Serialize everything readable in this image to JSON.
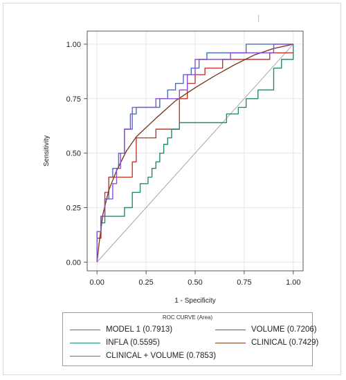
{
  "chart_data": {
    "type": "line",
    "title": "",
    "xlabel": "1 - Specificity",
    "ylabel": "Sensitivity",
    "xlim": [
      -0.05,
      1.05
    ],
    "ylim": [
      -0.04,
      1.06
    ],
    "xticks": [
      "0.00",
      "0.25",
      "0.50",
      "0.75",
      "1.00"
    ],
    "yticks": [
      "0.00",
      "0.25",
      "0.50",
      "0.75",
      "1.00"
    ],
    "grid": true,
    "legend": {
      "title": "ROC CURVE (Area)",
      "placement": "bottom"
    },
    "reference_line": {
      "x": [
        0,
        1
      ],
      "y": [
        0,
        1
      ],
      "color": "#a6a6a6"
    },
    "series": [
      {
        "name": "MODEL 1 (0.7913)",
        "color": "#4a6fb5",
        "x": [
          0,
          0,
          0.02,
          0.02,
          0.04,
          0.04,
          0.06,
          0.06,
          0.08,
          0.08,
          0.11,
          0.11,
          0.14,
          0.14,
          0.17,
          0.17,
          0.2,
          0.2,
          0.24,
          0.24,
          0.28,
          0.28,
          0.32,
          0.32,
          0.36,
          0.36,
          0.4,
          0.4,
          0.44,
          0.44,
          0.48,
          0.48,
          0.52,
          0.52,
          0.56,
          0.56,
          0.6,
          0.6,
          0.64,
          0.64,
          0.68,
          0.68,
          0.72,
          0.72,
          0.76,
          0.76,
          0.88,
          0.88,
          1.0
        ],
        "y": [
          0,
          0.11,
          0.11,
          0.21,
          0.21,
          0.29,
          0.29,
          0.39,
          0.39,
          0.43,
          0.43,
          0.5,
          0.5,
          0.61,
          0.61,
          0.68,
          0.68,
          0.71,
          0.71,
          0.71,
          0.71,
          0.71,
          0.71,
          0.75,
          0.75,
          0.79,
          0.79,
          0.82,
          0.82,
          0.86,
          0.86,
          0.89,
          0.89,
          0.93,
          0.93,
          0.96,
          0.96,
          0.96,
          0.96,
          0.96,
          0.96,
          0.96,
          0.96,
          0.96,
          0.96,
          1.0,
          1.0,
          1.0,
          1.0
        ]
      },
      {
        "name": "VOLUME (0.7206)",
        "color": "#c0392b",
        "x": [
          0,
          0,
          0.02,
          0.02,
          0.04,
          0.04,
          0.06,
          0.06,
          0.1,
          0.1,
          0.14,
          0.14,
          0.18,
          0.18,
          0.2,
          0.2,
          0.26,
          0.26,
          0.3,
          0.3,
          0.38,
          0.38,
          0.42,
          0.42,
          0.46,
          0.46,
          0.5,
          0.5,
          0.55,
          0.55,
          0.6,
          0.6,
          0.64,
          0.64,
          0.72,
          0.72,
          0.88,
          0.88,
          0.94,
          0.94,
          1.0
        ],
        "y": [
          0,
          0.11,
          0.11,
          0.21,
          0.21,
          0.32,
          0.32,
          0.39,
          0.39,
          0.39,
          0.39,
          0.39,
          0.39,
          0.46,
          0.46,
          0.57,
          0.57,
          0.57,
          0.57,
          0.61,
          0.61,
          0.61,
          0.61,
          0.75,
          0.75,
          0.82,
          0.82,
          0.86,
          0.86,
          0.89,
          0.89,
          0.89,
          0.89,
          0.93,
          0.93,
          0.93,
          0.93,
          0.96,
          0.96,
          0.96,
          0.96
        ]
      },
      {
        "name": "INFLA (0.5595)",
        "color": "#1f8a70",
        "x": [
          0,
          0,
          0.02,
          0.02,
          0.04,
          0.04,
          0.06,
          0.06,
          0.14,
          0.14,
          0.18,
          0.18,
          0.22,
          0.22,
          0.26,
          0.26,
          0.28,
          0.28,
          0.3,
          0.3,
          0.32,
          0.32,
          0.34,
          0.34,
          0.36,
          0.36,
          0.38,
          0.38,
          0.4,
          0.4,
          0.42,
          0.42,
          0.44,
          0.44,
          0.48,
          0.48,
          0.66,
          0.66,
          0.72,
          0.72,
          0.76,
          0.76,
          0.82,
          0.82,
          0.84,
          0.84,
          0.9,
          0.9,
          0.94,
          0.94,
          1.0,
          1.0
        ],
        "y": [
          0,
          0.14,
          0.14,
          0.18,
          0.18,
          0.21,
          0.21,
          0.21,
          0.21,
          0.25,
          0.25,
          0.32,
          0.32,
          0.36,
          0.36,
          0.39,
          0.39,
          0.43,
          0.43,
          0.46,
          0.46,
          0.5,
          0.5,
          0.54,
          0.54,
          0.57,
          0.57,
          0.61,
          0.61,
          0.61,
          0.61,
          0.64,
          0.64,
          0.64,
          0.64,
          0.64,
          0.64,
          0.68,
          0.68,
          0.71,
          0.71,
          0.75,
          0.75,
          0.79,
          0.79,
          0.79,
          0.79,
          0.89,
          0.89,
          0.93,
          0.93,
          1.0
        ]
      },
      {
        "name": "CLINICAL (0.7429)",
        "color": "#7b3b1e",
        "x": [
          0,
          0.01,
          0.03,
          0.06,
          0.1,
          0.15,
          0.2,
          0.3,
          0.4,
          0.5,
          0.6,
          0.7,
          0.8,
          0.9,
          1.0
        ],
        "y": [
          0,
          0.08,
          0.22,
          0.33,
          0.42,
          0.51,
          0.575,
          0.66,
          0.74,
          0.8,
          0.855,
          0.905,
          0.95,
          0.98,
          1.0
        ]
      },
      {
        "name": "CLINICAL + VOLUME (0.7853)",
        "color": "#8a4fd8",
        "x": [
          0,
          0,
          0.02,
          0.02,
          0.04,
          0.04,
          0.08,
          0.08,
          0.1,
          0.1,
          0.12,
          0.12,
          0.14,
          0.14,
          0.18,
          0.18,
          0.22,
          0.22,
          0.3,
          0.3,
          0.38,
          0.38,
          0.42,
          0.42,
          0.46,
          0.46,
          0.5,
          0.5,
          0.56,
          0.56,
          0.62,
          0.62,
          0.68,
          0.68,
          0.76,
          0.76,
          0.9,
          0.9,
          1.0
        ],
        "y": [
          0,
          0.14,
          0.14,
          0.21,
          0.21,
          0.29,
          0.29,
          0.36,
          0.36,
          0.43,
          0.43,
          0.5,
          0.5,
          0.61,
          0.61,
          0.71,
          0.71,
          0.71,
          0.71,
          0.75,
          0.75,
          0.75,
          0.75,
          0.79,
          0.79,
          0.86,
          0.86,
          0.93,
          0.93,
          0.93,
          0.93,
          0.93,
          0.93,
          0.96,
          0.96,
          0.96,
          0.96,
          1.0,
          1.0
        ]
      }
    ]
  },
  "legend_layout": [
    {
      "index": 0,
      "col": 0,
      "row": 0
    },
    {
      "index": 1,
      "col": 1,
      "row": 0
    },
    {
      "index": 2,
      "col": 0,
      "row": 1
    },
    {
      "index": 3,
      "col": 1,
      "row": 1
    },
    {
      "index": 4,
      "col": 0,
      "row": 2
    }
  ],
  "top_mark": "|"
}
